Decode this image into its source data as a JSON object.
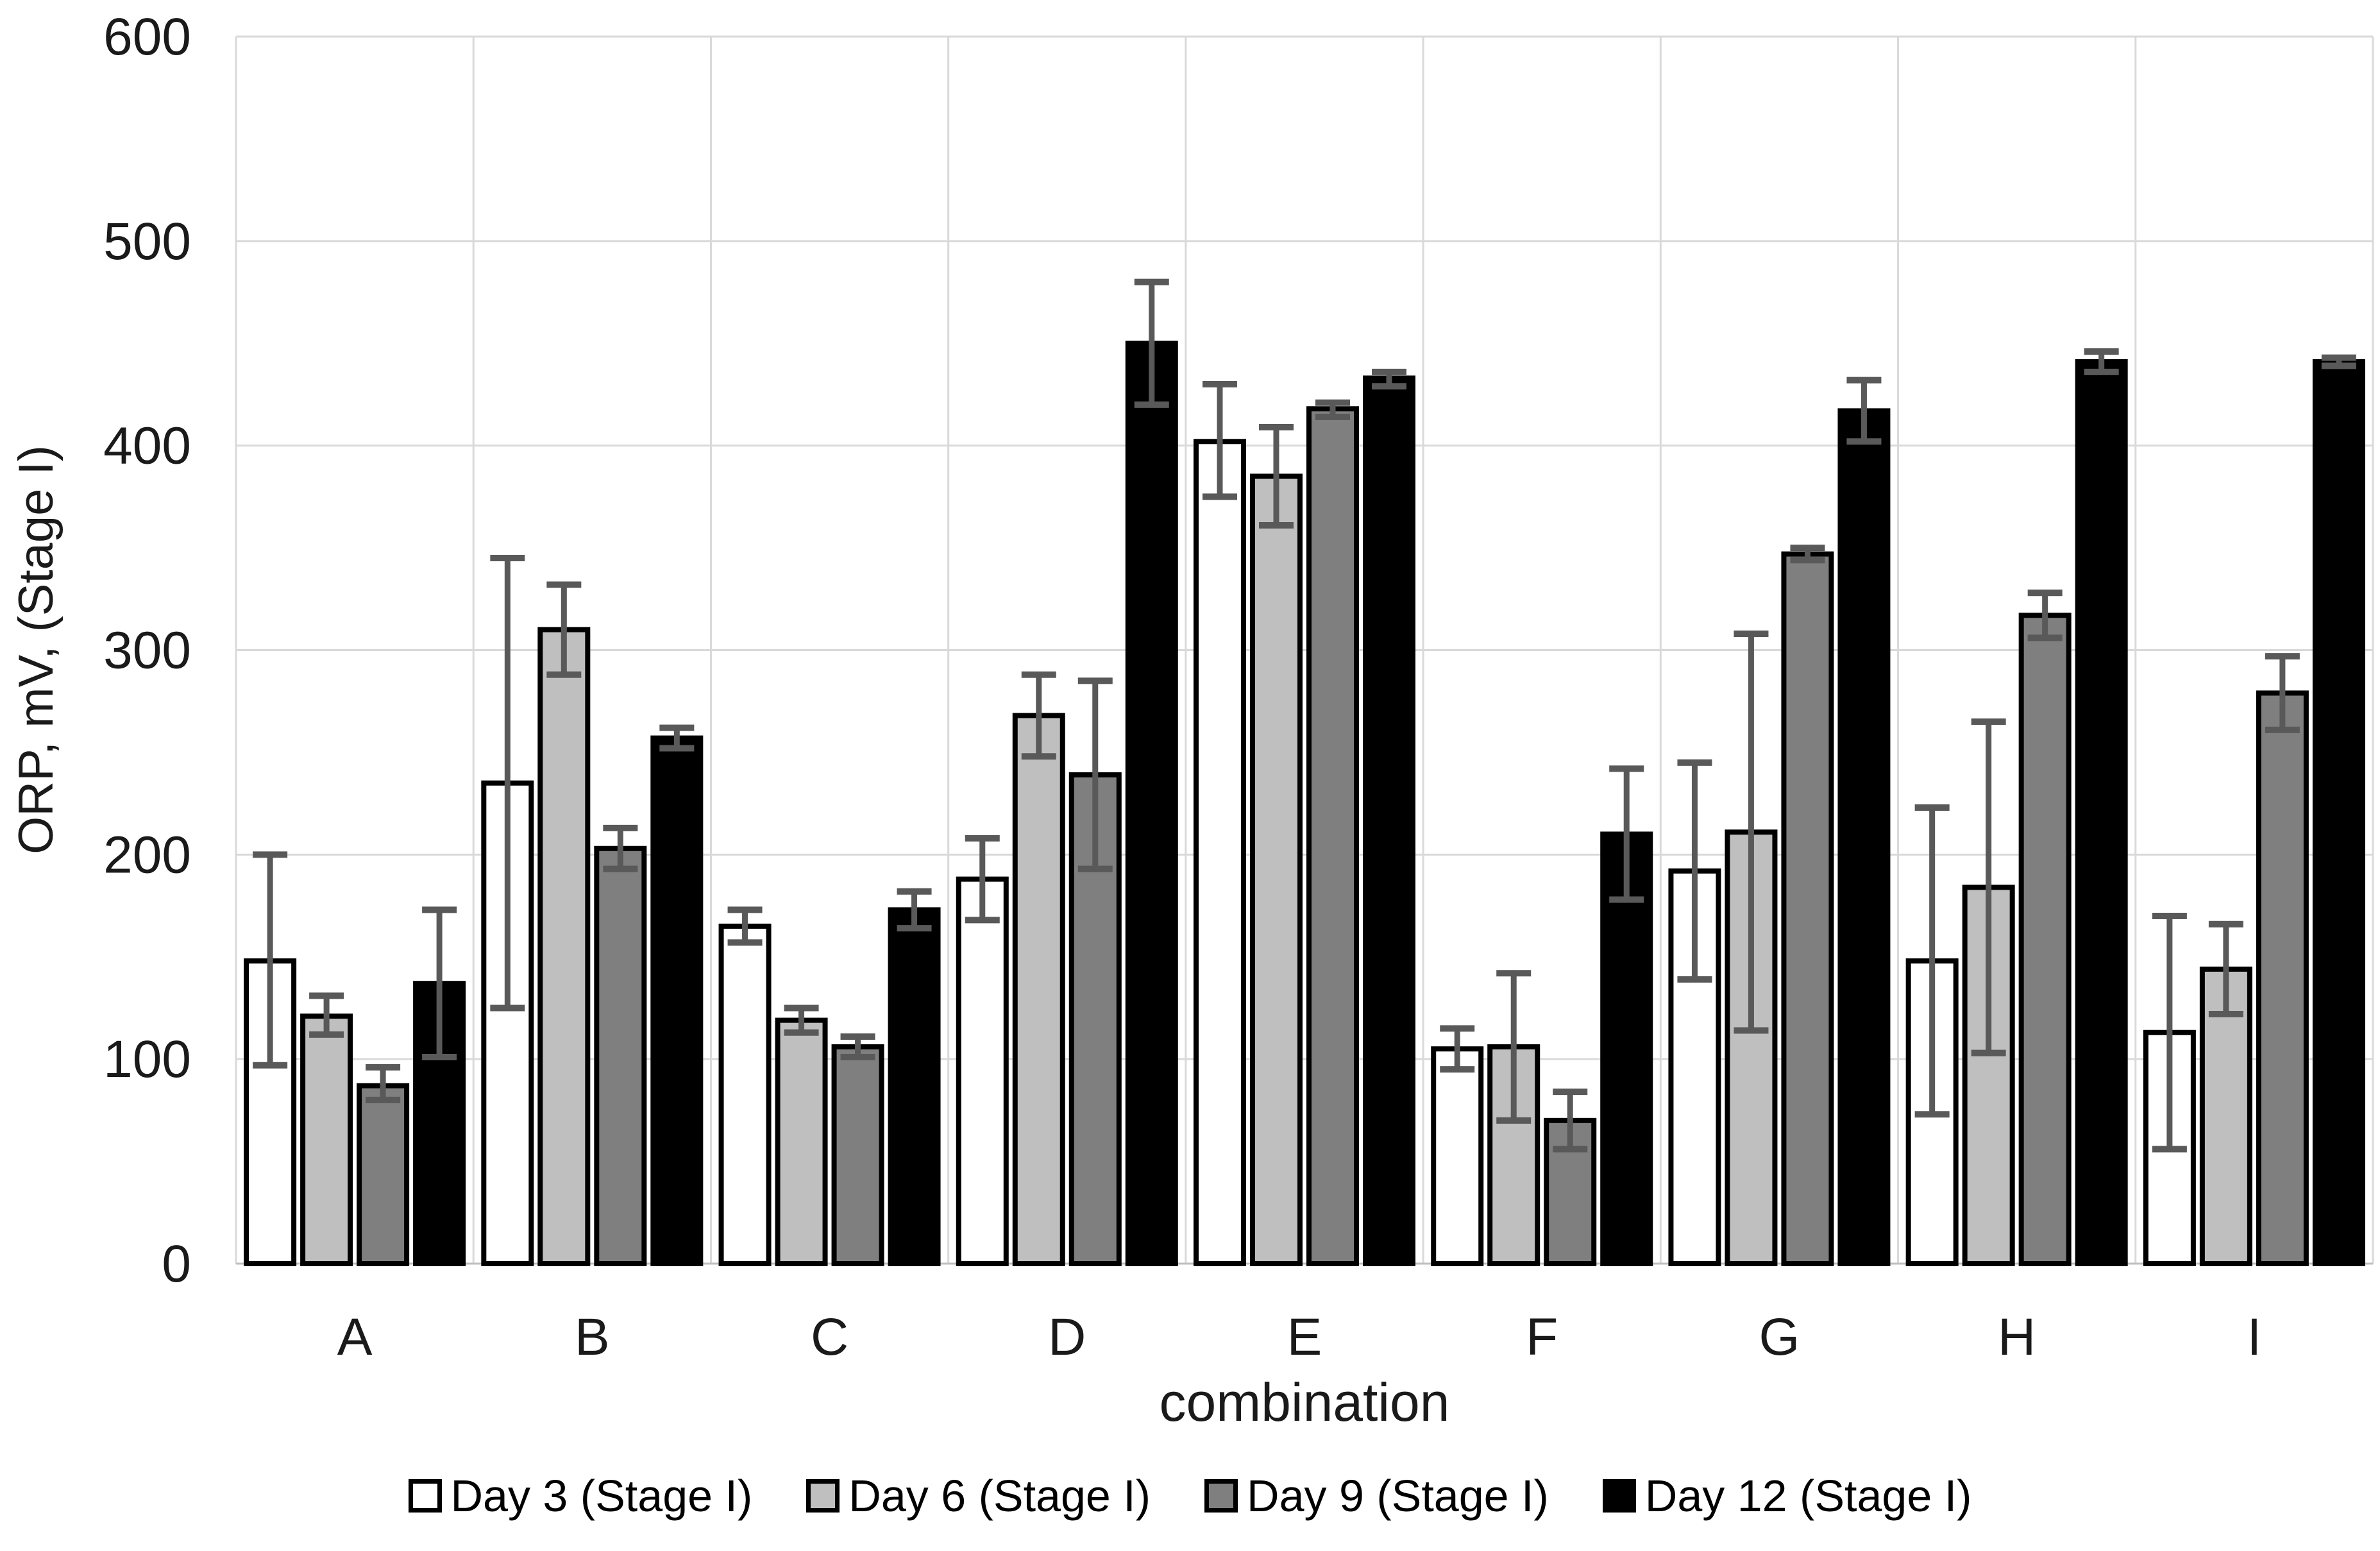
{
  "chart_data": {
    "type": "bar",
    "title": "",
    "xlabel": "combination",
    "ylabel": "ORP, mV, (Stage I)",
    "ylim": [
      0,
      600
    ],
    "yticks": [
      0,
      100,
      200,
      300,
      400,
      500,
      600
    ],
    "grid": true,
    "vertical_gridlines": true,
    "legend_position": "bottom",
    "categories": [
      "A",
      "B",
      "C",
      "D",
      "E",
      "F",
      "G",
      "H",
      "I"
    ],
    "series": [
      {
        "name": "Day 3 (Stage I)",
        "fill": "#ffffff",
        "stroke": "#000000",
        "values": [
          148,
          235,
          165,
          188,
          402,
          105,
          192,
          148,
          113
        ],
        "err_low": [
          97,
          125,
          157,
          168,
          375,
          95,
          139,
          73,
          56
        ],
        "err_high": [
          200,
          345,
          173,
          208,
          430,
          115,
          245,
          223,
          170
        ]
      },
      {
        "name": "Day 6 (Stage I)",
        "fill": "#bfbfbf",
        "stroke": "#000000",
        "values": [
          121,
          310,
          119,
          268,
          385,
          106,
          211,
          184,
          144
        ],
        "err_low": [
          112,
          288,
          113,
          248,
          361,
          70,
          114,
          103,
          122
        ],
        "err_high": [
          131,
          332,
          125,
          288,
          409,
          142,
          308,
          265,
          166
        ]
      },
      {
        "name": "Day 9 (Stage I)",
        "fill": "#7f7f7f",
        "stroke": "#000000",
        "values": [
          87,
          203,
          106,
          239,
          418,
          70,
          347,
          317,
          279
        ],
        "err_low": [
          80,
          193,
          101,
          193,
          414,
          56,
          344,
          306,
          261
        ],
        "err_high": [
          96,
          213,
          111,
          285,
          421,
          84,
          350,
          328,
          297
        ]
      },
      {
        "name": "Day 12 (Stage I)",
        "fill": "#000000",
        "stroke": "#000000",
        "values": [
          137,
          257,
          173,
          450,
          433,
          210,
          417,
          441,
          441
        ],
        "err_low": [
          101,
          252,
          164,
          420,
          429,
          178,
          402,
          436,
          439
        ],
        "err_high": [
          173,
          262,
          182,
          480,
          436,
          242,
          432,
          446,
          443
        ]
      }
    ],
    "colors": {
      "error_bar": "#595959",
      "gridline": "#d9d9d9",
      "axis_line": "#bfbfbf",
      "text": "#000000",
      "background": "#ffffff"
    }
  }
}
